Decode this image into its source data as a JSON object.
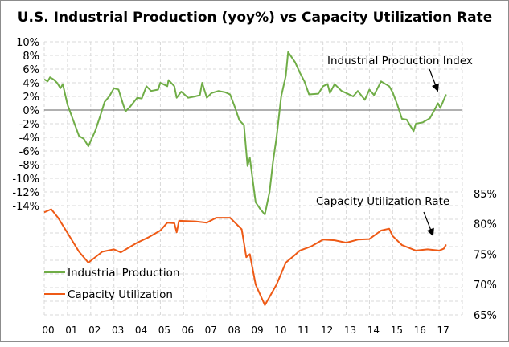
{
  "chart_data": {
    "type": "line",
    "title": "U.S. Industrial Production (yoy%) vs Capacity Utilization Rate",
    "x_tick_labels": [
      "00",
      "01",
      "02",
      "03",
      "04",
      "05",
      "06",
      "07",
      "08",
      "09",
      "10",
      "11",
      "12",
      "13",
      "14",
      "15",
      "16",
      "17"
    ],
    "xlim": [
      2000,
      2018
    ],
    "left_axis": {
      "ylim": [
        -30,
        10
      ],
      "tick_labels": [
        "10%",
        "8%",
        "6%",
        "4%",
        "2%",
        "0%",
        "-2%",
        "-4%",
        "-6%",
        "-8%",
        "-10%",
        "-12%",
        "-14%"
      ],
      "tick_values": [
        10,
        8,
        6,
        4,
        2,
        0,
        -2,
        -4,
        -6,
        -8,
        -10,
        -12,
        -14
      ]
    },
    "right_axis": {
      "ylim": [
        65,
        110
      ],
      "tick_labels": [
        "85%",
        "80%",
        "75%",
        "70%",
        "65%"
      ],
      "tick_values": [
        85,
        80,
        75,
        70,
        65
      ]
    },
    "grid": true,
    "legend_placement": "bottom-left",
    "colors": {
      "industrial_production": "#70AD47",
      "capacity_utilization": "#EE5A16",
      "zero_line": "#808080",
      "grid": "#d9d9d9"
    },
    "series": [
      {
        "name": "Industrial Production",
        "axis": "left",
        "x": [
          2000.0,
          2000.15,
          2000.25,
          2000.4,
          2000.55,
          2000.7,
          2000.8,
          2001.0,
          2001.25,
          2001.5,
          2001.7,
          2001.9,
          2002.2,
          2002.4,
          2002.6,
          2002.8,
          2003.0,
          2003.2,
          2003.4,
          2003.5,
          2003.7,
          2004.0,
          2004.2,
          2004.4,
          2004.6,
          2004.9,
          2005.0,
          2005.3,
          2005.35,
          2005.6,
          2005.7,
          2005.9,
          2006.2,
          2006.5,
          2006.7,
          2006.8,
          2007.0,
          2007.2,
          2007.5,
          2007.8,
          2008.0,
          2008.2,
          2008.4,
          2008.6,
          2008.75,
          2008.85,
          2009.1,
          2009.3,
          2009.5,
          2009.7,
          2009.85,
          2010.0,
          2010.2,
          2010.4,
          2010.5,
          2010.8,
          2011.0,
          2011.2,
          2011.4,
          2011.8,
          2012.0,
          2012.2,
          2012.3,
          2012.5,
          2012.8,
          2013.0,
          2013.3,
          2013.5,
          2013.8,
          2014.0,
          2014.2,
          2014.5,
          2014.85,
          2015.0,
          2015.2,
          2015.4,
          2015.6,
          2015.9,
          2016.0,
          2016.3,
          2016.6,
          2016.8,
          2016.95,
          2017.05,
          2017.3
        ],
        "values": [
          4.5,
          4.2,
          4.8,
          4.5,
          4.0,
          3.2,
          3.8,
          0.8,
          -1.5,
          -3.8,
          -4.2,
          -5.3,
          -3.0,
          -1.0,
          1.2,
          2.0,
          3.2,
          3.0,
          0.8,
          -0.2,
          0.5,
          1.8,
          1.7,
          3.5,
          2.8,
          3.0,
          4.0,
          3.5,
          4.4,
          3.5,
          1.8,
          2.7,
          1.8,
          2.0,
          2.2,
          4.0,
          1.8,
          2.5,
          2.8,
          2.6,
          2.3,
          0.5,
          -1.5,
          -2.2,
          -8.2,
          -7.0,
          -13.5,
          -14.5,
          -15.3,
          -12.0,
          -7.5,
          -4.0,
          2.0,
          5.0,
          8.5,
          7.0,
          5.5,
          4.2,
          2.3,
          2.4,
          3.5,
          3.8,
          2.5,
          3.8,
          2.8,
          2.5,
          2.0,
          2.8,
          1.5,
          3.0,
          2.2,
          4.2,
          3.5,
          2.6,
          0.8,
          -1.3,
          -1.4,
          -3.1,
          -2.0,
          -1.8,
          -1.2,
          0.0,
          1.0,
          0.3,
          2.3
        ]
      },
      {
        "name": "Capacity Utilization",
        "axis": "right",
        "x": [
          2000.0,
          2000.3,
          2000.6,
          2001.0,
          2001.5,
          2001.9,
          2002.5,
          2003.0,
          2003.3,
          2003.6,
          2004.0,
          2004.5,
          2005.0,
          2005.3,
          2005.6,
          2005.7,
          2005.8,
          2006.5,
          2007.0,
          2007.4,
          2008.0,
          2008.5,
          2008.7,
          2008.85,
          2009.1,
          2009.5,
          2010.0,
          2010.4,
          2010.8,
          2011.0,
          2011.5,
          2012.0,
          2012.5,
          2013.0,
          2013.5,
          2014.0,
          2014.5,
          2014.85,
          2015.0,
          2015.4,
          2016.0,
          2016.5,
          2017.0,
          2017.2,
          2017.3
        ],
        "values": [
          81.9,
          82.4,
          81.0,
          78.5,
          75.4,
          73.6,
          75.4,
          75.8,
          75.3,
          76.0,
          76.9,
          77.8,
          78.9,
          80.2,
          80.1,
          78.6,
          80.5,
          80.4,
          80.2,
          81.0,
          81.0,
          79.1,
          74.5,
          75.0,
          70.0,
          66.6,
          70.0,
          73.6,
          74.9,
          75.6,
          76.3,
          77.4,
          77.3,
          76.9,
          77.4,
          77.5,
          78.9,
          79.2,
          78.0,
          76.5,
          75.6,
          75.8,
          75.6,
          75.9,
          76.6
        ]
      }
    ],
    "annotations": [
      "Industrial Production  Index",
      "Capacity Utilization Rate"
    ]
  }
}
